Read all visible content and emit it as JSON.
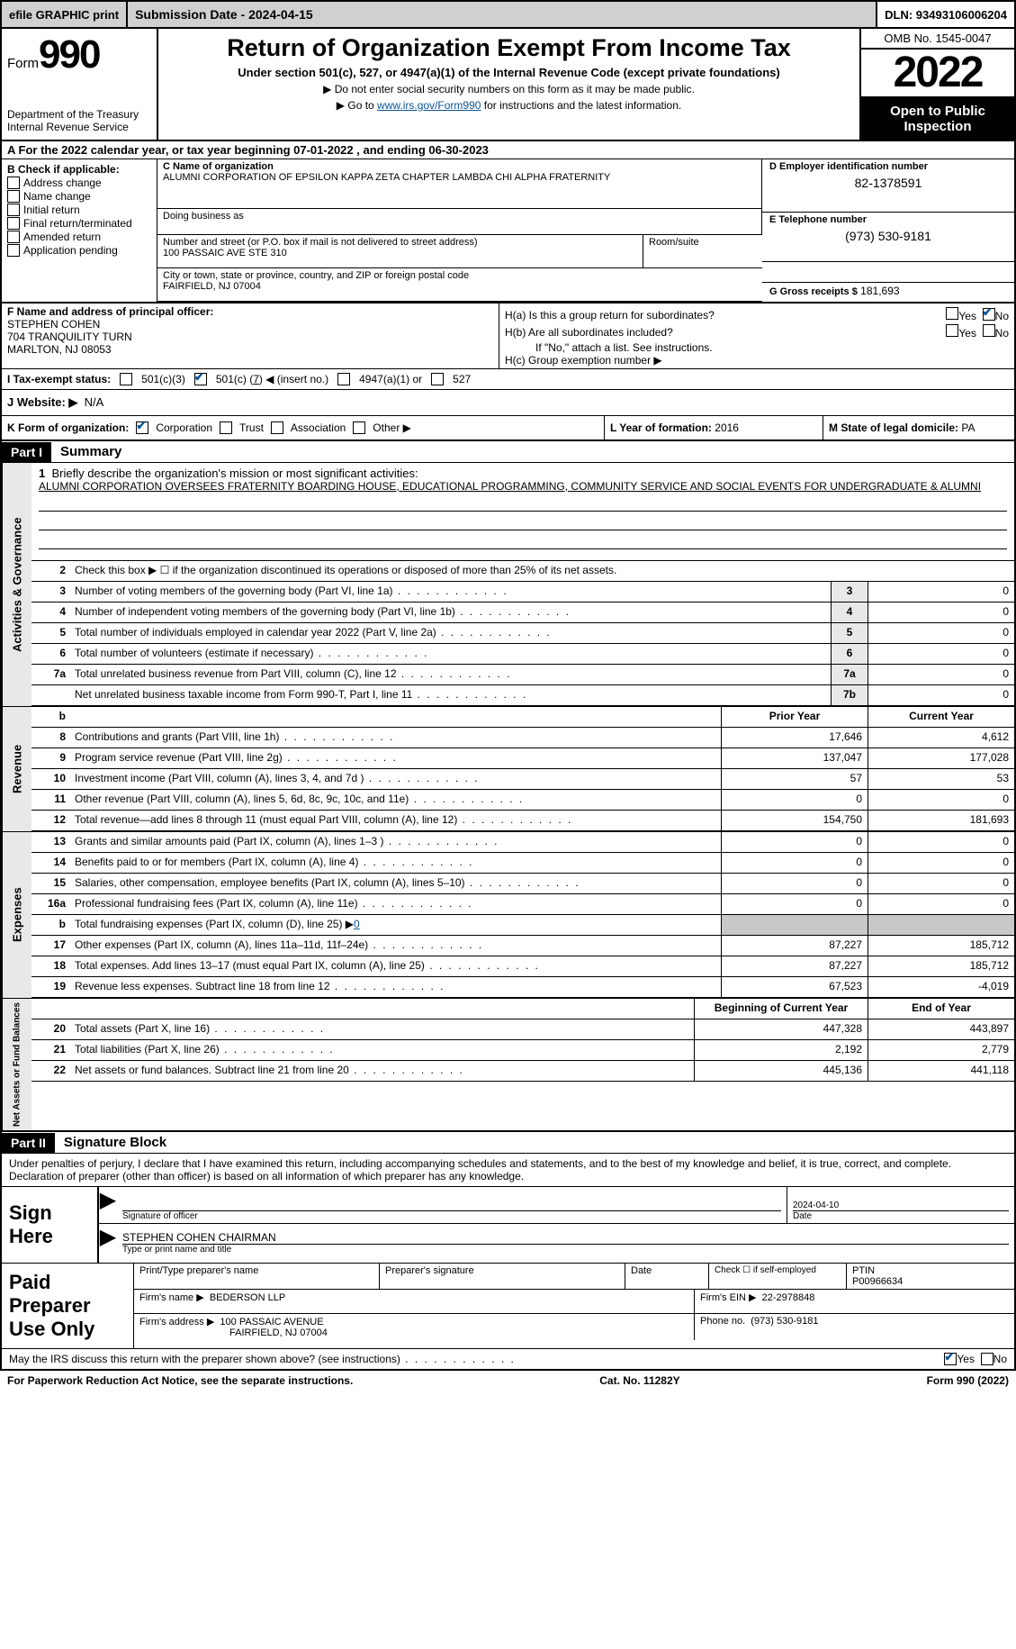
{
  "topbar": {
    "efile": "efile GRAPHIC print",
    "submission": "Submission Date - 2024-04-15",
    "dln": "DLN: 93493106006204"
  },
  "header": {
    "form_label": "Form",
    "form_number": "990",
    "dept": "Department of the Treasury",
    "irs": "Internal Revenue Service",
    "title": "Return of Organization Exempt From Income Tax",
    "subtitle": "Under section 501(c), 527, or 4947(a)(1) of the Internal Revenue Code (except private foundations)",
    "line1": "▶ Do not enter social security numbers on this form as it may be made public.",
    "line2_pre": "▶ Go to ",
    "line2_link": "www.irs.gov/Form990",
    "line2_post": " for instructions and the latest information.",
    "omb": "OMB No. 1545-0047",
    "year": "2022",
    "open": "Open to Public Inspection"
  },
  "line_a": "A For the 2022 calendar year, or tax year beginning 07-01-2022    , and ending 06-30-2023",
  "section_b": {
    "label": "B Check if applicable:",
    "items": [
      "Address change",
      "Name change",
      "Initial return",
      "Final return/terminated",
      "Amended return",
      "Application pending"
    ]
  },
  "section_c": {
    "name_label": "C Name of organization",
    "name": "ALUMNI CORPORATION OF EPSILON KAPPA ZETA CHAPTER LAMBDA CHI ALPHA FRATERNITY",
    "dba_label": "Doing business as",
    "addr_label": "Number and street (or P.O. box if mail is not delivered to street address)",
    "addr": "100 PASSAIC AVE STE 310",
    "room_label": "Room/suite",
    "city_label": "City or town, state or province, country, and ZIP or foreign postal code",
    "city": "FAIRFIELD, NJ  07004"
  },
  "section_d": {
    "ein_label": "D Employer identification number",
    "ein": "82-1378591",
    "tel_label": "E Telephone number",
    "tel": "(973) 530-9181",
    "gross_label": "G Gross receipts $",
    "gross": "181,693"
  },
  "section_f": {
    "label": "F Name and address of principal officer:",
    "name": "STEPHEN COHEN",
    "addr1": "704 TRANQUILITY TURN",
    "addr2": "MARLTON, NJ  08053"
  },
  "section_h": {
    "ha": "H(a)  Is this a group return for subordinates?",
    "hb": "H(b)  Are all subordinates included?",
    "hb_note": "If \"No,\" attach a list. See instructions.",
    "hc": "H(c)  Group exemption number ▶",
    "yes": "Yes",
    "no": "No"
  },
  "tax_status": {
    "label": "I  Tax-exempt status:",
    "c3": "501(c)(3)",
    "c_pre": "501(c) (",
    "c_num": "7",
    "c_post": ") ◀ (insert no.)",
    "a1": "4947(a)(1) or",
    "527": "527"
  },
  "line_j": {
    "label": "J  Website: ▶",
    "val": "N/A"
  },
  "line_k": {
    "label": "K Form of organization:",
    "corp": "Corporation",
    "trust": "Trust",
    "assoc": "Association",
    "other": "Other ▶",
    "l_label": "L Year of formation:",
    "l_val": "2016",
    "m_label": "M State of legal domicile:",
    "m_val": "PA"
  },
  "part1": {
    "part": "Part I",
    "title": "Summary"
  },
  "summary": {
    "tabs": [
      "Activities & Governance",
      "Revenue",
      "Expenses",
      "Net Assets or Fund Balances"
    ],
    "line1_label": "Briefly describe the organization's mission or most significant activities:",
    "line1_text": "ALUMNI CORPORATION OVERSEES FRATERNITY BOARDING HOUSE, EDUCATIONAL PROGRAMMING, COMMUNITY SERVICE AND SOCIAL EVENTS FOR UNDERGRADUATE & ALUMNI",
    "line2": "Check this box ▶ ☐ if the organization discontinued its operations or disposed of more than 25% of its net assets.",
    "rows_gov": [
      {
        "n": "3",
        "d": "Number of voting members of the governing body (Part VI, line 1a)",
        "box": "3",
        "v": "0"
      },
      {
        "n": "4",
        "d": "Number of independent voting members of the governing body (Part VI, line 1b)",
        "box": "4",
        "v": "0"
      },
      {
        "n": "5",
        "d": "Total number of individuals employed in calendar year 2022 (Part V, line 2a)",
        "box": "5",
        "v": "0"
      },
      {
        "n": "6",
        "d": "Total number of volunteers (estimate if necessary)",
        "box": "6",
        "v": "0"
      },
      {
        "n": "7a",
        "d": "Total unrelated business revenue from Part VIII, column (C), line 12",
        "box": "7a",
        "v": "0"
      },
      {
        "n": "",
        "d": "Net unrelated business taxable income from Form 990-T, Part I, line 11",
        "box": "7b",
        "v": "0"
      }
    ],
    "header_b": "b",
    "prior": "Prior Year",
    "current": "Current Year",
    "rows_rev": [
      {
        "n": "8",
        "d": "Contributions and grants (Part VIII, line 1h)",
        "p": "17,646",
        "c": "4,612"
      },
      {
        "n": "9",
        "d": "Program service revenue (Part VIII, line 2g)",
        "p": "137,047",
        "c": "177,028"
      },
      {
        "n": "10",
        "d": "Investment income (Part VIII, column (A), lines 3, 4, and 7d )",
        "p": "57",
        "c": "53"
      },
      {
        "n": "11",
        "d": "Other revenue (Part VIII, column (A), lines 5, 6d, 8c, 9c, 10c, and 11e)",
        "p": "0",
        "c": "0"
      },
      {
        "n": "12",
        "d": "Total revenue—add lines 8 through 11 (must equal Part VIII, column (A), line 12)",
        "p": "154,750",
        "c": "181,693"
      }
    ],
    "rows_exp": [
      {
        "n": "13",
        "d": "Grants and similar amounts paid (Part IX, column (A), lines 1–3 )",
        "p": "0",
        "c": "0"
      },
      {
        "n": "14",
        "d": "Benefits paid to or for members (Part IX, column (A), line 4)",
        "p": "0",
        "c": "0"
      },
      {
        "n": "15",
        "d": "Salaries, other compensation, employee benefits (Part IX, column (A), lines 5–10)",
        "p": "0",
        "c": "0"
      },
      {
        "n": "16a",
        "d": "Professional fundraising fees (Part IX, column (A), line 11e)",
        "p": "0",
        "c": "0"
      }
    ],
    "line_b": "Total fundraising expenses (Part IX, column (D), line 25) ▶",
    "line_b_val": "0",
    "rows_exp2": [
      {
        "n": "17",
        "d": "Other expenses (Part IX, column (A), lines 11a–11d, 11f–24e)",
        "p": "87,227",
        "c": "185,712"
      },
      {
        "n": "18",
        "d": "Total expenses. Add lines 13–17 (must equal Part IX, column (A), line 25)",
        "p": "87,227",
        "c": "185,712"
      },
      {
        "n": "19",
        "d": "Revenue less expenses. Subtract line 18 from line 12",
        "p": "67,523",
        "c": "-4,019"
      }
    ],
    "begin": "Beginning of Current Year",
    "end": "End of Year",
    "rows_net": [
      {
        "n": "20",
        "d": "Total assets (Part X, line 16)",
        "p": "447,328",
        "c": "443,897"
      },
      {
        "n": "21",
        "d": "Total liabilities (Part X, line 26)",
        "p": "2,192",
        "c": "2,779"
      },
      {
        "n": "22",
        "d": "Net assets or fund balances. Subtract line 21 from line 20",
        "p": "445,136",
        "c": "441,118"
      }
    ]
  },
  "part2": {
    "part": "Part II",
    "title": "Signature Block",
    "intro": "Under penalties of perjury, I declare that I have examined this return, including accompanying schedules and statements, and to the best of my knowledge and belief, it is true, correct, and complete. Declaration of preparer (other than officer) is based on all information of which preparer has any knowledge.",
    "sign_here": "Sign Here",
    "sig_officer": "Signature of officer",
    "sig_date_val": "2024-04-10",
    "date_label": "Date",
    "officer_name": "STEPHEN COHEN  CHAIRMAN",
    "type_label": "Type or print name and title",
    "paid": "Paid Preparer Use Only",
    "prep_name_label": "Print/Type preparer's name",
    "prep_sig_label": "Preparer's signature",
    "check_if": "Check ☐ if self-employed",
    "ptin_label": "PTIN",
    "ptin": "P00966634",
    "firm_name_label": "Firm's name    ▶",
    "firm_name": "BEDERSON LLP",
    "firm_ein_label": "Firm's EIN ▶",
    "firm_ein": "22-2978848",
    "firm_addr_label": "Firm's address ▶",
    "firm_addr1": "100 PASSAIC AVENUE",
    "firm_addr2": "FAIRFIELD, NJ  07004",
    "phone_label": "Phone no.",
    "phone": "(973) 530-9181",
    "may_irs": "May the IRS discuss this return with the preparer shown above? (see instructions)"
  },
  "footer": {
    "left": "For Paperwork Reduction Act Notice, see the separate instructions.",
    "mid": "Cat. No. 11282Y",
    "right": "Form 990 (2022)"
  }
}
